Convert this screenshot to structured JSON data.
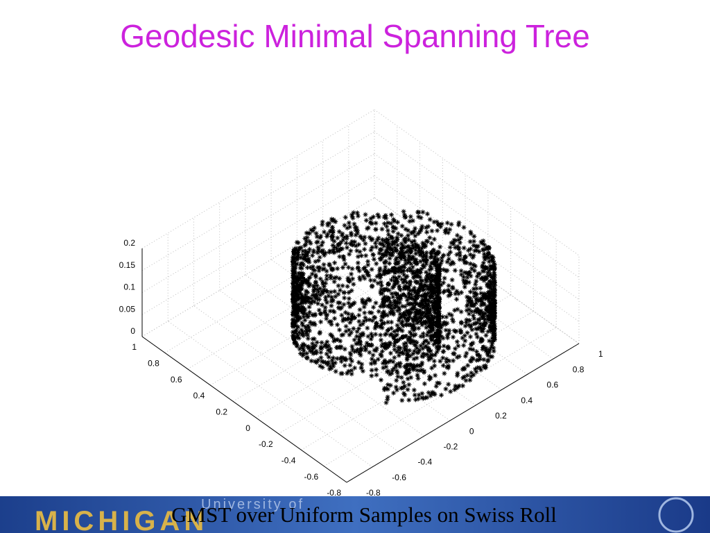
{
  "title": "Geodesic Minimal Spanning Tree",
  "plot": {
    "z_ticks": [
      "0.2",
      "0.15",
      "0.1",
      "0.05",
      "0"
    ],
    "x_ticks": [
      "1",
      "0.8",
      "0.6",
      "0.4",
      "0.2",
      "0",
      "-0.2",
      "-0.4",
      "-0.6",
      "-0.8"
    ],
    "y_ticks": [
      "-0.8",
      "-0.6",
      "-0.4",
      "-0.2",
      "0",
      "0.2",
      "0.4",
      "0.6",
      "0.8",
      "1"
    ]
  },
  "banner": {
    "logo_top": "University of",
    "logo_bottom": "MICHIGAN",
    "caption": "GMST over Uniform Samples on Swiss Roll"
  }
}
